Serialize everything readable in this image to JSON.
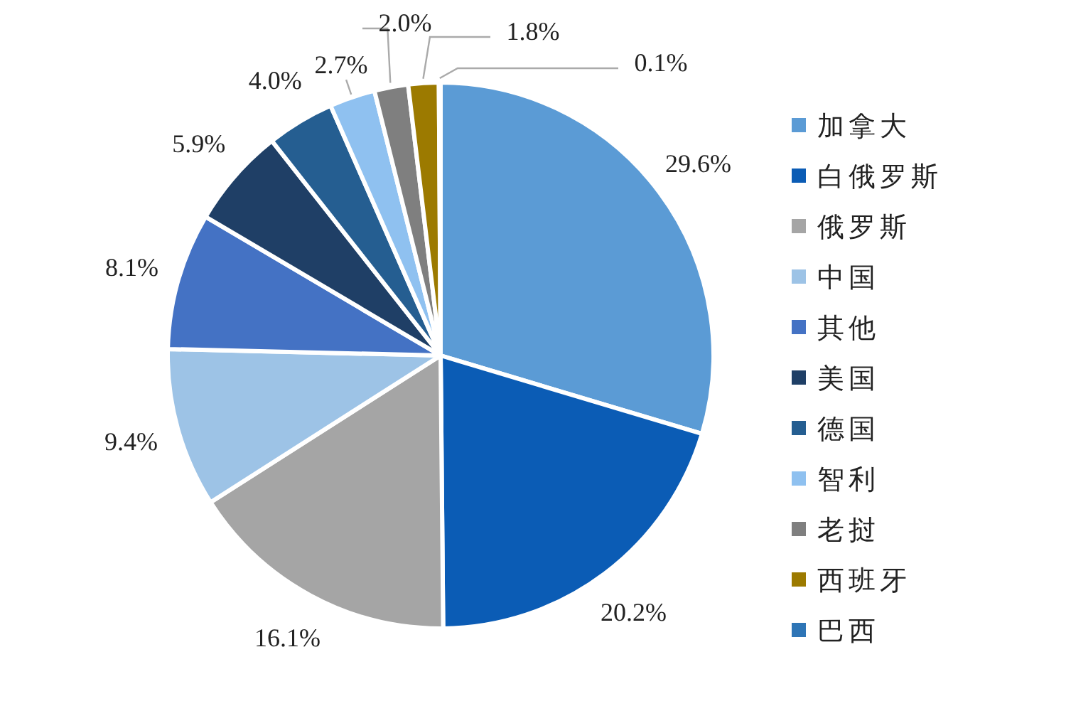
{
  "chart_data": {
    "type": "pie",
    "categories": [
      "加拿大",
      "白俄罗斯",
      "俄罗斯",
      "中国",
      "其他",
      "美国",
      "德国",
      "智利",
      "老挝",
      "西班牙",
      "巴西"
    ],
    "values": [
      29.6,
      20.2,
      16.1,
      9.4,
      8.1,
      5.9,
      4.0,
      2.7,
      2.0,
      1.8,
      0.1
    ],
    "colors": [
      "#5b9bd5",
      "#0b5cb5",
      "#a5a5a5",
      "#9dc3e6",
      "#4472c4",
      "#1f3f66",
      "#255e91",
      "#8fc1f0",
      "#7f7f7f",
      "#9c7a00",
      "#2e75b6"
    ],
    "value_labels": [
      "29.6%",
      "20.2%",
      "16.1%",
      "9.4%",
      "8.1%",
      "5.9%",
      "4.0%",
      "2.7%",
      "2.0%",
      "1.8%",
      "0.1%"
    ],
    "legend": "right"
  }
}
